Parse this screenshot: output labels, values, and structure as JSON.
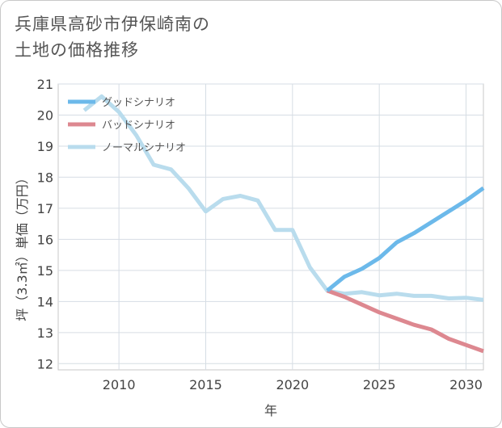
{
  "title": {
    "line1": "兵庫県高砂市伊保崎南の",
    "line2": "土地の価格推移"
  },
  "chart_data": {
    "type": "line",
    "title": "兵庫県高砂市伊保崎南の土地の価格推移",
    "xlabel": "年",
    "ylabel": "坪（3.3㎡）単価（万円）",
    "xlim": [
      2006.5,
      2031
    ],
    "ylim": [
      11.8,
      21
    ],
    "xticks": [
      2010,
      2015,
      2020,
      2025,
      2030
    ],
    "yticks": [
      12,
      13,
      14,
      15,
      16,
      17,
      18,
      19,
      20,
      21
    ],
    "grid": true,
    "legend_position": "top-left",
    "series": [
      {
        "name": "グッドシナリオ",
        "color": "#6cb9ea",
        "x": [
          2022,
          2023,
          2024,
          2025,
          2026,
          2027,
          2028,
          2029,
          2030,
          2031
        ],
        "y": [
          14.35,
          14.8,
          15.05,
          15.4,
          15.9,
          16.2,
          16.55,
          16.9,
          17.25,
          17.65
        ]
      },
      {
        "name": "バッドシナリオ",
        "color": "#dd8890",
        "x": [
          2022,
          2023,
          2024,
          2025,
          2026,
          2027,
          2028,
          2029,
          2030,
          2031
        ],
        "y": [
          14.35,
          14.15,
          13.9,
          13.65,
          13.45,
          13.25,
          13.1,
          12.8,
          12.6,
          12.4
        ]
      },
      {
        "name": "ノーマルシナリオ",
        "color": "#b9dced",
        "x": [
          2008,
          2009,
          2010,
          2011,
          2012,
          2013,
          2014,
          2015,
          2016,
          2017,
          2018,
          2019,
          2020,
          2021,
          2022,
          2023,
          2024,
          2025,
          2026,
          2027,
          2028,
          2029,
          2030,
          2031
        ],
        "y": [
          20.15,
          20.6,
          20.1,
          19.35,
          18.4,
          18.25,
          17.65,
          16.9,
          17.3,
          17.4,
          17.25,
          16.3,
          16.3,
          15.1,
          14.35,
          14.25,
          14.3,
          14.2,
          14.25,
          14.18,
          14.18,
          14.1,
          14.12,
          14.05
        ]
      }
    ]
  }
}
